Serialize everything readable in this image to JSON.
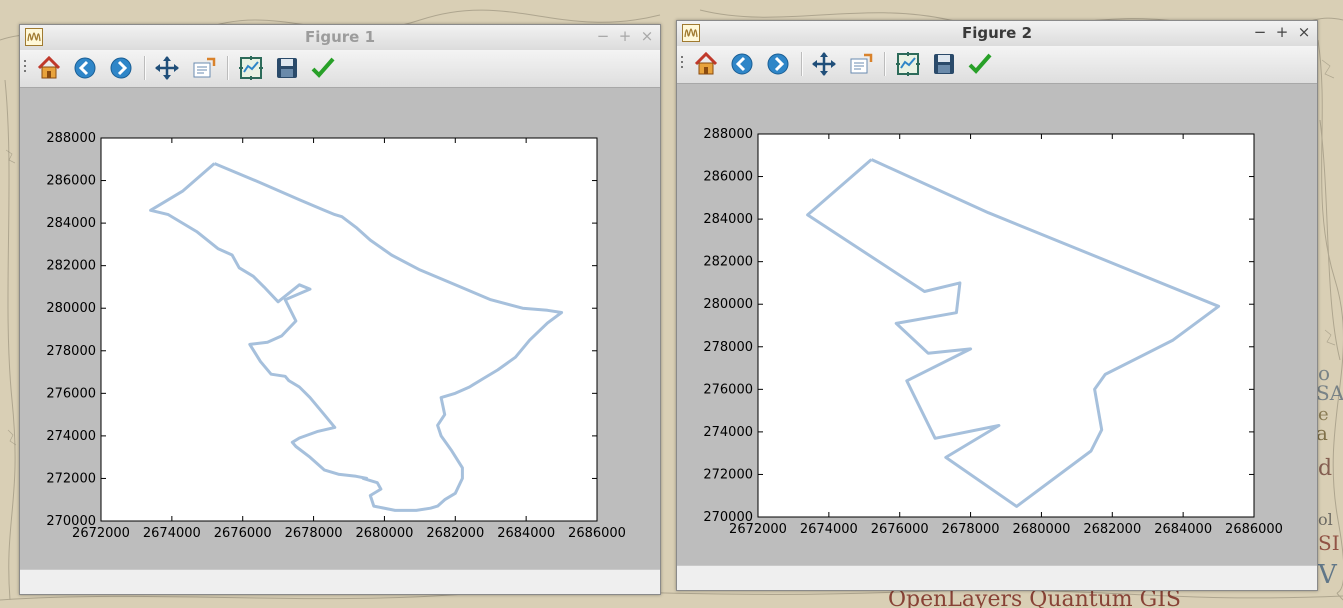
{
  "desktop": {
    "background_label": "OpenLayers Quantum GIS",
    "accent_colors": {
      "map_paper": "#d8cdb2",
      "ink": "#6a6350"
    }
  },
  "windows": [
    {
      "title": "Figure 1",
      "active": false,
      "controls": {
        "minimize": "−",
        "maximize": "+",
        "close": "×"
      },
      "toolbar": [
        "home-icon",
        "back-icon",
        "forward-icon",
        "pan-icon",
        "zoom-icon",
        "subplots-icon",
        "save-icon",
        "edit-icon"
      ]
    },
    {
      "title": "Figure 2",
      "active": true,
      "controls": {
        "minimize": "−",
        "maximize": "+",
        "close": "×"
      },
      "toolbar": [
        "home-icon",
        "back-icon",
        "forward-icon",
        "pan-icon",
        "zoom-icon",
        "subplots-icon",
        "save-icon",
        "edit-icon"
      ]
    }
  ],
  "chart_data": [
    {
      "type": "line",
      "title": "",
      "xlabel": "",
      "ylabel": "",
      "xlim": [
        2672000,
        2686000
      ],
      "ylim": [
        270000,
        288000
      ],
      "xticks": [
        "2672000",
        "2674000",
        "2676000",
        "2678000",
        "2680000",
        "2682000",
        "2684000",
        "2686000"
      ],
      "yticks": [
        "270000",
        "272000",
        "274000",
        "276000",
        "278000",
        "280000",
        "282000",
        "284000",
        "286000",
        "288000"
      ],
      "grid": false,
      "line_color": "#a6c0dc",
      "series": [
        {
          "x": [
            2675200,
            2676500,
            2677600,
            2678300,
            2678600,
            2678800,
            2679200,
            2679600,
            2680200,
            2681000,
            2682000,
            2683000,
            2683900,
            2684600,
            2685000,
            2684600,
            2684100,
            2683700,
            2683200,
            2682800,
            2682500,
            2682400,
            2682000,
            2681600,
            2681700,
            2681500,
            2681600,
            2681900,
            2682200,
            2682200,
            2682000,
            2681700,
            2681500,
            2681300,
            2680900,
            2680300,
            2679700,
            2679600,
            2679900,
            2679800,
            2679400,
            2679500,
            2679200,
            2678700,
            2678300,
            2677900,
            2677500,
            2677400,
            2677600,
            2678100,
            2678600,
            2678300,
            2677900,
            2677600,
            2677300,
            2677200,
            2676800,
            2676500,
            2676200,
            2676700,
            2677100,
            2677500,
            2677200,
            2677900,
            2677600,
            2677000,
            2676600,
            2676300,
            2676200,
            2675900,
            2675700,
            2675300,
            2675000,
            2674700,
            2674300,
            2673900,
            2673400,
            2674300,
            2675200
          ],
          "y": [
            286800,
            285900,
            285100,
            284600,
            284400,
            284300,
            283800,
            283200,
            282500,
            281800,
            281100,
            280400,
            280000,
            279900,
            279800,
            279300,
            278500,
            277700,
            277100,
            276700,
            276400,
            276300,
            276000,
            275800,
            275000,
            274500,
            274000,
            273300,
            272500,
            272000,
            271300,
            271000,
            270700,
            270600,
            270500,
            270500,
            270700,
            271200,
            271500,
            271800,
            272000,
            272000,
            272100,
            272200,
            272400,
            273000,
            273500,
            273700,
            273900,
            274200,
            274400,
            275000,
            275800,
            276300,
            276600,
            276800,
            276900,
            277500,
            278300,
            278400,
            278700,
            279400,
            280400,
            280900,
            281100,
            280300,
            281000,
            281500,
            281600,
            281900,
            282500,
            282800,
            283200,
            283600,
            284000,
            284400,
            284600,
            285500,
            286800
          ]
        }
      ]
    },
    {
      "type": "line",
      "title": "",
      "xlabel": "",
      "ylabel": "",
      "xlim": [
        2672000,
        2686000
      ],
      "ylim": [
        270000,
        288000
      ],
      "xticks": [
        "2672000",
        "2674000",
        "2676000",
        "2678000",
        "2680000",
        "2682000",
        "2684000",
        "2686000"
      ],
      "yticks": [
        "270000",
        "272000",
        "274000",
        "276000",
        "278000",
        "280000",
        "282000",
        "284000",
        "286000",
        "288000"
      ],
      "grid": false,
      "line_color": "#a6c0dc",
      "series": [
        {
          "x": [
            2675200,
            2678500,
            2685000,
            2683700,
            2681800,
            2681500,
            2681700,
            2681400,
            2679300,
            2677300,
            2678800,
            2677000,
            2676200,
            2678000,
            2676800,
            2675900,
            2677600,
            2677700,
            2676700,
            2673400,
            2675200
          ],
          "y": [
            286800,
            284300,
            279900,
            278300,
            276700,
            276000,
            274100,
            273100,
            270500,
            272800,
            274300,
            273700,
            276400,
            277900,
            277700,
            279100,
            279600,
            281000,
            280600,
            284200,
            286800
          ]
        }
      ]
    }
  ]
}
